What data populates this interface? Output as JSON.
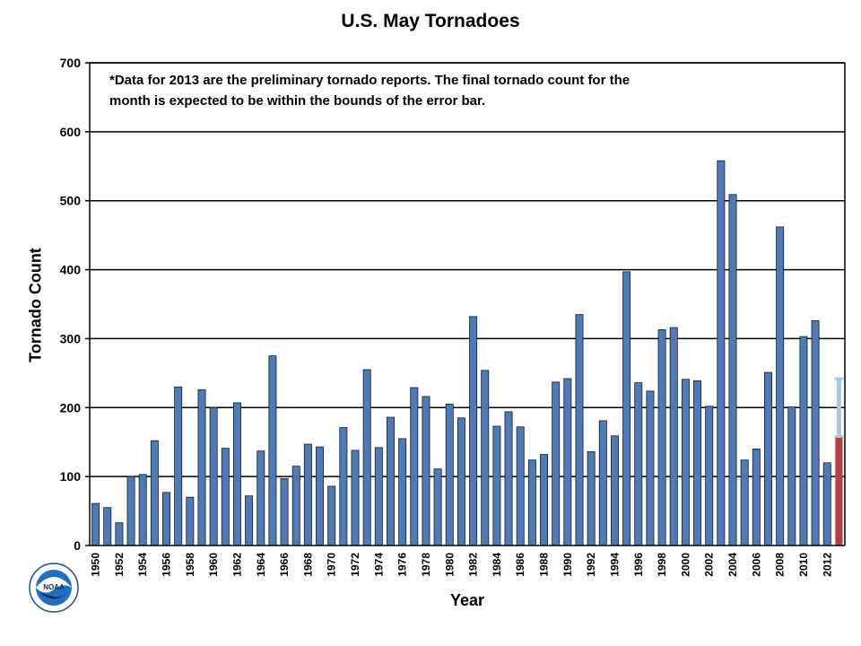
{
  "chart_data": {
    "type": "bar",
    "title": "U.S. May Tornadoes",
    "xlabel": "Year",
    "ylabel": "Tornado Count",
    "ylim": [
      0,
      700
    ],
    "yticks": [
      0,
      100,
      200,
      300,
      400,
      500,
      600,
      700
    ],
    "grid": true,
    "annotation": "*Data for 2013 are the preliminary tornado reports. The final tornado count for the month is expected to be within the bounds of the error bar.",
    "categories": [
      1950,
      1951,
      1952,
      1953,
      1954,
      1955,
      1956,
      1957,
      1958,
      1959,
      1960,
      1961,
      1962,
      1963,
      1964,
      1965,
      1966,
      1967,
      1968,
      1969,
      1970,
      1971,
      1972,
      1973,
      1974,
      1975,
      1976,
      1977,
      1978,
      1979,
      1980,
      1981,
      1982,
      1983,
      1984,
      1985,
      1986,
      1987,
      1988,
      1989,
      1990,
      1991,
      1992,
      1993,
      1994,
      1995,
      1996,
      1997,
      1998,
      1999,
      2000,
      2001,
      2002,
      2003,
      2004,
      2005,
      2006,
      2007,
      2008,
      2009,
      2010,
      2011,
      2012,
      2013
    ],
    "xtick_labels": [
      "1950",
      "1952",
      "1954",
      "1956",
      "1958",
      "1960",
      "1962",
      "1964",
      "1966",
      "1968",
      "1970",
      "1972",
      "1974",
      "1976",
      "1978",
      "1980",
      "1982",
      "1984",
      "1986",
      "1988",
      "1990",
      "1992",
      "1994",
      "1996",
      "1998",
      "2000",
      "2002",
      "2004",
      "2006",
      "2008",
      "2010",
      "2012"
    ],
    "values": [
      61,
      55,
      33,
      100,
      103,
      152,
      77,
      230,
      70,
      226,
      200,
      141,
      207,
      72,
      137,
      275,
      97,
      115,
      147,
      143,
      86,
      171,
      138,
      255,
      142,
      186,
      155,
      229,
      216,
      111,
      205,
      185,
      332,
      254,
      173,
      194,
      172,
      124,
      132,
      237,
      242,
      335,
      136,
      181,
      159,
      397,
      236,
      224,
      313,
      316,
      241,
      239,
      202,
      558,
      509,
      124,
      140,
      251,
      462,
      201,
      303,
      326,
      120,
      158
    ],
    "preliminary_year": 2013,
    "error_bar": {
      "low": 158,
      "high": 242
    },
    "colors": {
      "bar": "#4f7ab8",
      "bar_edge": "#1b1b1b",
      "preliminary_bar": "#b5403e",
      "error_bar": "#a9c6e8"
    }
  },
  "logo": {
    "icon": "noaa-logo-icon",
    "text": "NOAA"
  }
}
